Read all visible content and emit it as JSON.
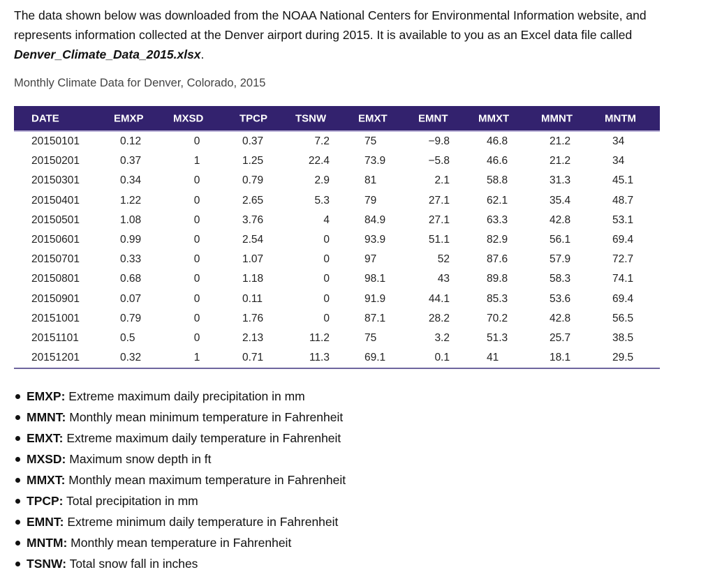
{
  "intro": {
    "text": "The data shown below was downloaded from the NOAA National Centers for Environmental Information website, and represents information collected at the Denver airport during 2015. It is available to you as an Excel data file called ",
    "filename": "Denver_Climate_Data_2015.xlsx",
    "end": "."
  },
  "caption": "Monthly Climate Data for Denver, Colorado, 2015",
  "colors": {
    "header_bg": "#33226e",
    "header_text": "#ffffff"
  },
  "table": {
    "headers": [
      "DATE",
      "EMXP",
      "MXSD",
      "TPCP",
      "TSNW",
      "EMXT",
      "EMNT",
      "MMXT",
      "MMNT",
      "MNTM"
    ],
    "rows": [
      [
        "20150101",
        "0.12",
        "0",
        "0.37",
        "7.2",
        "75",
        "−9.8",
        "46.8",
        "21.2",
        "34"
      ],
      [
        "20150201",
        "0.37",
        "1",
        "1.25",
        "22.4",
        "73.9",
        "−5.8",
        "46.6",
        "21.2",
        "34"
      ],
      [
        "20150301",
        "0.34",
        "0",
        "0.79",
        "2.9",
        "81",
        "2.1",
        "58.8",
        "31.3",
        "45.1"
      ],
      [
        "20150401",
        "1.22",
        "0",
        "2.65",
        "5.3",
        "79",
        "27.1",
        "62.1",
        "35.4",
        "48.7"
      ],
      [
        "20150501",
        "1.08",
        "0",
        "3.76",
        "4",
        "84.9",
        "27.1",
        "63.3",
        "42.8",
        "53.1"
      ],
      [
        "20150601",
        "0.99",
        "0",
        "2.54",
        "0",
        "93.9",
        "51.1",
        "82.9",
        "56.1",
        "69.4"
      ],
      [
        "20150701",
        "0.33",
        "0",
        "1.07",
        "0",
        "97",
        "52",
        "87.6",
        "57.9",
        "72.7"
      ],
      [
        "20150801",
        "0.68",
        "0",
        "1.18",
        "0",
        "98.1",
        "43",
        "89.8",
        "58.3",
        "74.1"
      ],
      [
        "20150901",
        "0.07",
        "0",
        "0.11",
        "0",
        "91.9",
        "44.1",
        "85.3",
        "53.6",
        "69.4"
      ],
      [
        "20151001",
        "0.79",
        "0",
        "1.76",
        "0",
        "87.1",
        "28.2",
        "70.2",
        "42.8",
        "56.5"
      ],
      [
        "20151101",
        "0.5",
        "0",
        "2.13",
        "11.2",
        "75",
        "3.2",
        "51.3",
        "25.7",
        "38.5"
      ],
      [
        "20151201",
        "0.32",
        "1",
        "0.71",
        "11.3",
        "69.1",
        "0.1",
        "41",
        "18.1",
        "29.5"
      ]
    ]
  },
  "definitions": [
    {
      "term": "EMXP:",
      "desc": " Extreme maximum daily precipitation in mm"
    },
    {
      "term": "MMNT:",
      "desc": " Monthly mean minimum temperature in Fahrenheit"
    },
    {
      "term": "EMXT:",
      "desc": " Extreme maximum daily temperature in Fahrenheit"
    },
    {
      "term": "MXSD:",
      "desc": " Maximum snow depth in ft"
    },
    {
      "term": "MMXT:",
      "desc": " Monthly mean maximum temperature in Fahrenheit"
    },
    {
      "term": "TPCP:",
      "desc": " Total precipitation in mm"
    },
    {
      "term": "EMNT:",
      "desc": " Extreme minimum daily temperature in Fahrenheit"
    },
    {
      "term": "MNTM:",
      "desc": " Monthly mean temperature in Fahrenheit"
    },
    {
      "term": "TSNW:",
      "desc": " Total snow fall in inches"
    }
  ]
}
